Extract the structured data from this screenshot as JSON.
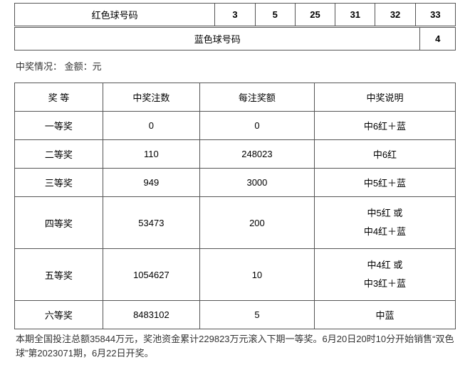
{
  "red_section": {
    "label": "红色球号码",
    "numbers": [
      "3",
      "5",
      "25",
      "31",
      "32",
      "33"
    ]
  },
  "blue_section": {
    "label": "蓝色球号码",
    "number": "4"
  },
  "status_line": "中奖情况：  金额：元",
  "prize_table": {
    "headers": [
      "奖 等",
      "中奖注数",
      "每注奖额",
      "中奖说明"
    ],
    "col_widths": [
      "20%",
      "22%",
      "26%",
      "32%"
    ],
    "rows": [
      {
        "level": "一等奖",
        "count": "0",
        "amount": "0",
        "desc": "中6红＋蓝",
        "multi": false
      },
      {
        "level": "二等奖",
        "count": "110",
        "amount": "248023",
        "desc": "中6红",
        "multi": false
      },
      {
        "level": "三等奖",
        "count": "949",
        "amount": "3000",
        "desc": "中5红＋蓝",
        "multi": false
      },
      {
        "level": "四等奖",
        "count": "53473",
        "amount": "200",
        "desc": "中5红 或\n中4红＋蓝",
        "multi": true
      },
      {
        "level": "五等奖",
        "count": "1054627",
        "amount": "10",
        "desc": "中4红 或\n中3红＋蓝",
        "multi": true
      },
      {
        "level": "六等奖",
        "count": "8483102",
        "amount": "5",
        "desc": "中蓝",
        "multi": false
      }
    ]
  },
  "footer": "本期全国投注总额35844万元，奖池资金累计229823万元滚入下期一等奖。6月20日20时10分开始销售“双色球”第2023071期，6月22日开奖。",
  "colors": {
    "border": "#555555",
    "text": "#333333",
    "background": "#ffffff"
  }
}
